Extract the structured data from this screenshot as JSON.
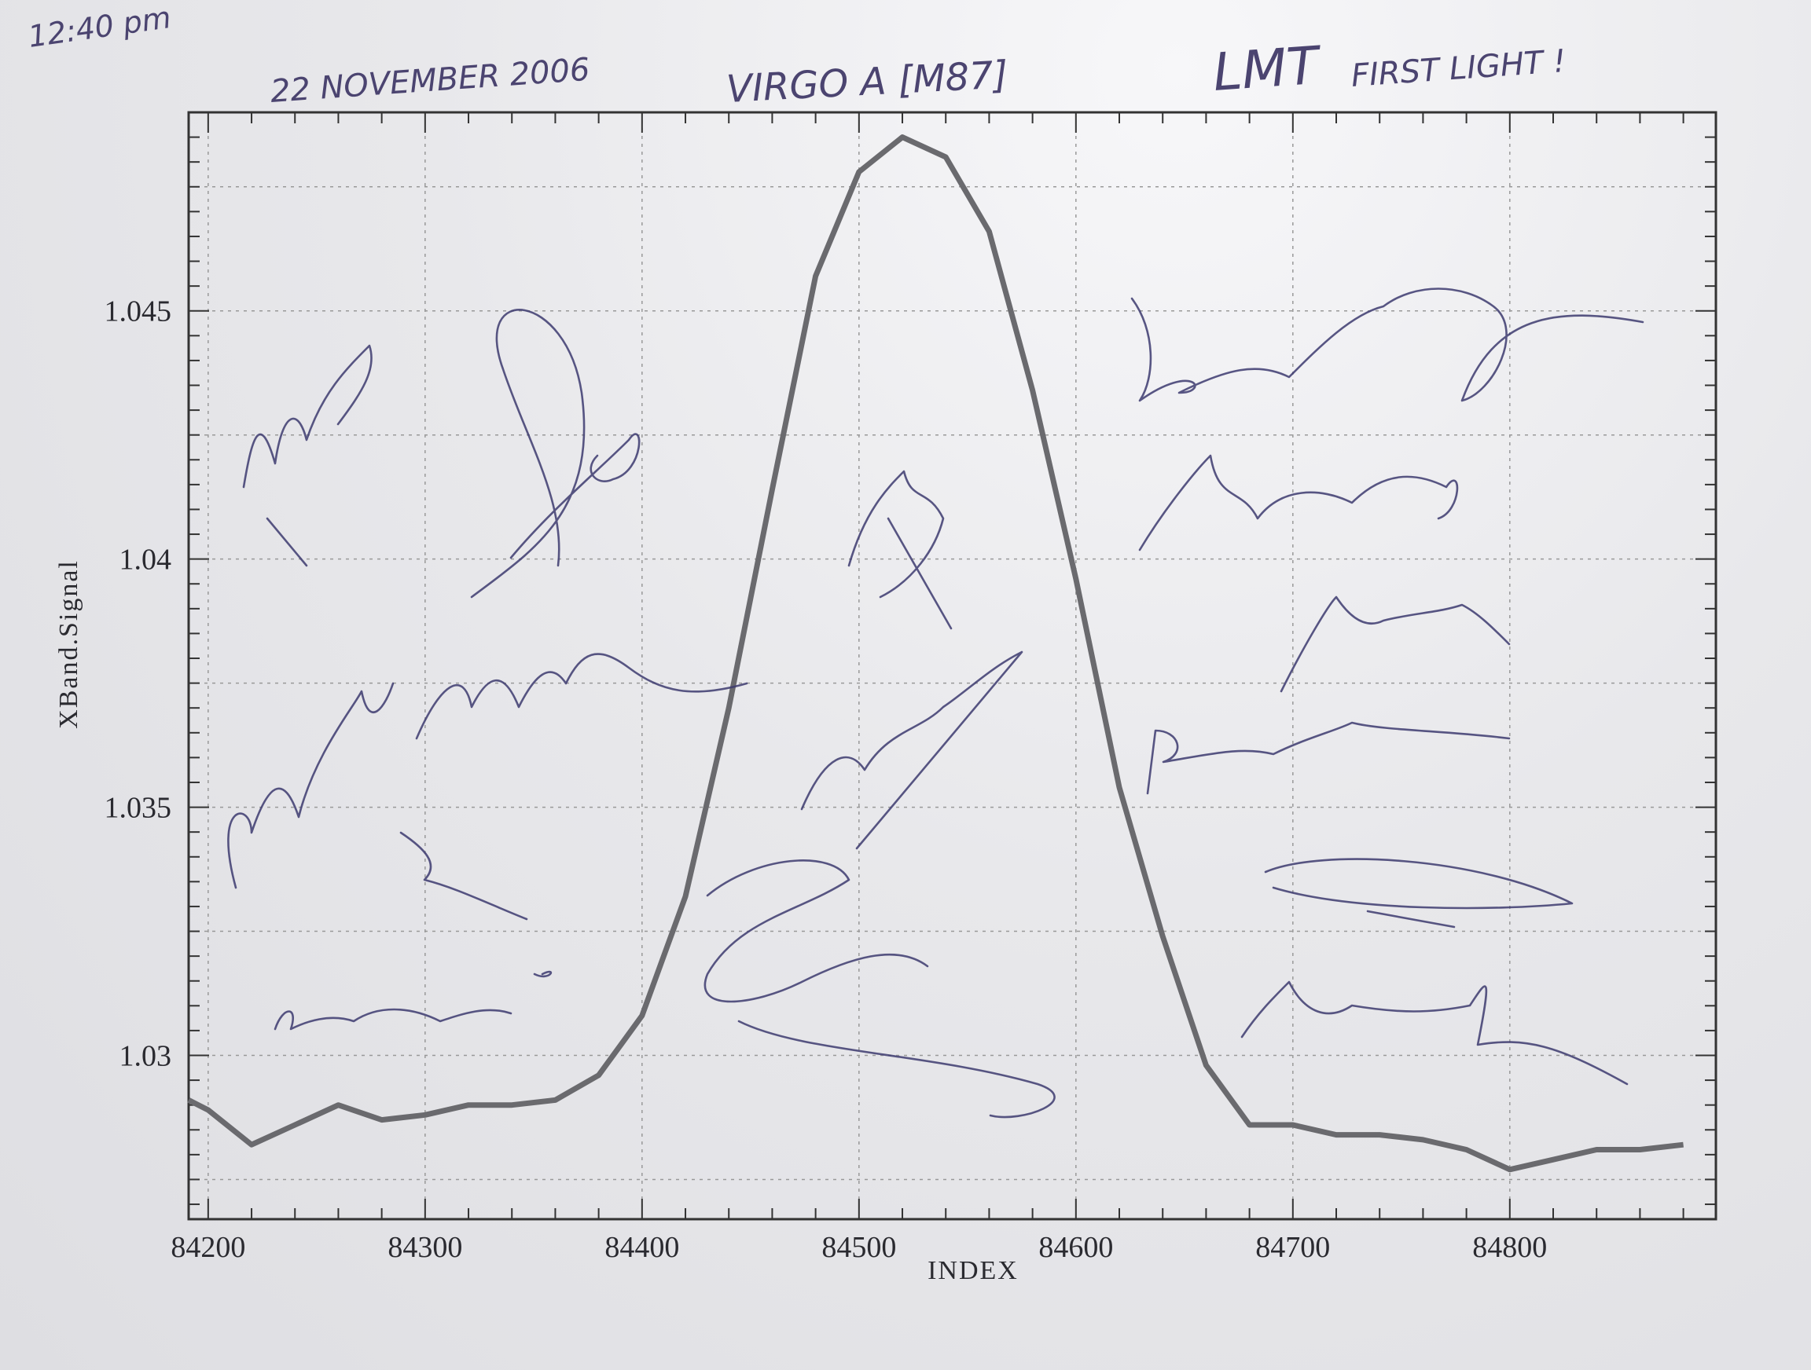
{
  "annotations": {
    "time": "12:40 pm",
    "date": "22 NOVEMBER 2006",
    "target": "VIRGO A  [M87]",
    "headline_big": "LMT",
    "headline_small": "FIRST LIGHT !"
  },
  "colors": {
    "curve": "#6a6a6e",
    "ink": "#3c3a6e",
    "paper": "#e9e9ec"
  },
  "chart_data": {
    "type": "line",
    "title": "",
    "xlabel": "INDEX",
    "ylabel": "XBand.Signal",
    "xlim": [
      84191,
      84895
    ],
    "ylim": [
      1.0267,
      1.049
    ],
    "grid": true,
    "xticks": [
      84200,
      84300,
      84400,
      84500,
      84600,
      84700,
      84800
    ],
    "xtick_labels": [
      "84200",
      "84300",
      "84400",
      "84500",
      "84600",
      "84700",
      "84800"
    ],
    "yticks": [
      1.03,
      1.035,
      1.04,
      1.045
    ],
    "ytick_labels": [
      "1.03",
      "1.035",
      "1.04",
      "1.045"
    ],
    "series": [
      {
        "x": [
          84180,
          84200,
          84220,
          84240,
          84260,
          84280,
          84300,
          84320,
          84340,
          84360,
          84380,
          84390,
          84400,
          84420,
          84440,
          84460,
          84480,
          84500,
          84520,
          84540,
          84560,
          84580,
          84600,
          84620,
          84640,
          84660,
          84680,
          84700,
          84720,
          84740,
          84760,
          84780,
          84800,
          84820,
          84840,
          84860,
          84880
        ],
        "y": [
          1.0291,
          1.0289,
          1.0282,
          1.0286,
          1.029,
          1.0287,
          1.0288,
          1.029,
          1.029,
          1.0291,
          1.0296,
          1.0302,
          1.0308,
          1.0332,
          1.037,
          1.0414,
          1.0457,
          1.0478,
          1.0485,
          1.0481,
          1.0466,
          1.0434,
          1.0396,
          1.0354,
          1.0324,
          1.0298,
          1.0286,
          1.0286,
          1.0284,
          1.0284,
          1.0283,
          1.0281,
          1.0277,
          1.0279,
          1.0281,
          1.0281,
          1.0282
        ]
      }
    ]
  }
}
